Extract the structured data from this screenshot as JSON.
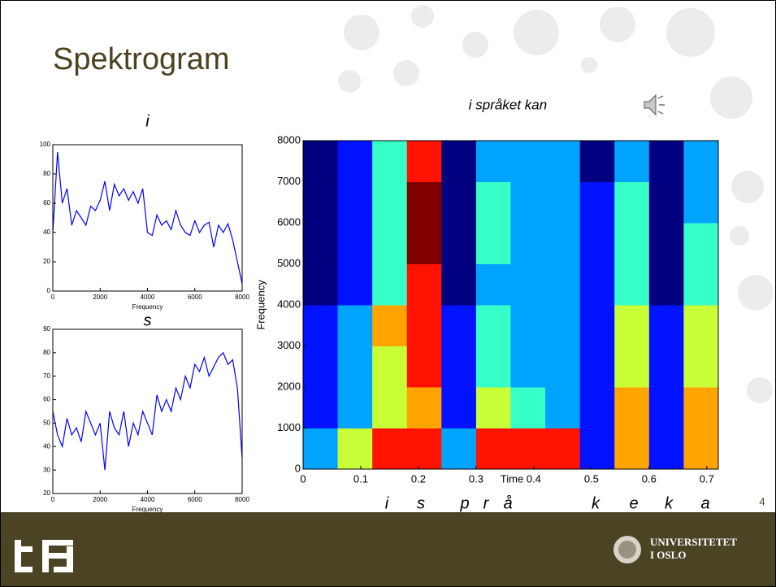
{
  "title": "Spektrogram",
  "page_number": "4",
  "phonemes": [
    "i",
    "s",
    "p",
    "r",
    "å",
    "k",
    "e",
    "k",
    "a"
  ],
  "footer": {
    "university": [
      "UNIVERSITETET",
      "I OSLO"
    ]
  },
  "chart_data": [
    {
      "type": "line",
      "title": "i",
      "xlabel": "Frequency",
      "color": "#0000ff",
      "x": [
        0,
        200,
        400,
        600,
        800,
        1000,
        1200,
        1400,
        1600,
        1800,
        2000,
        2200,
        2400,
        2600,
        2800,
        3000,
        3200,
        3400,
        3600,
        3800,
        4000,
        4200,
        4400,
        4600,
        4800,
        5000,
        5200,
        5400,
        5600,
        5800,
        6000,
        6200,
        6400,
        6600,
        6800,
        7000,
        7200,
        7400,
        7600,
        7800,
        8000
      ],
      "values": [
        40,
        95,
        60,
        70,
        45,
        55,
        50,
        45,
        58,
        55,
        62,
        75,
        55,
        73,
        65,
        70,
        62,
        68,
        60,
        70,
        40,
        38,
        52,
        45,
        48,
        42,
        55,
        45,
        40,
        38,
        48,
        40,
        45,
        47,
        30,
        45,
        40,
        46,
        35,
        20,
        5
      ],
      "xlim": [
        0,
        8000
      ],
      "xticks": [
        0,
        2000,
        4000,
        6000,
        8000
      ],
      "ylim": [
        0,
        100
      ],
      "yticks": [
        0,
        20,
        40,
        60,
        80,
        100
      ]
    },
    {
      "type": "line",
      "title": "s",
      "xlabel": "Frequency",
      "color": "#0000ff",
      "x": [
        0,
        200,
        400,
        600,
        800,
        1000,
        1200,
        1400,
        1600,
        1800,
        2000,
        2200,
        2400,
        2600,
        2800,
        3000,
        3200,
        3400,
        3600,
        3800,
        4000,
        4200,
        4400,
        4600,
        4800,
        5000,
        5200,
        5400,
        5600,
        5800,
        6000,
        6200,
        6400,
        6600,
        6800,
        7000,
        7200,
        7400,
        7600,
        7800,
        8000
      ],
      "values": [
        55,
        45,
        40,
        52,
        45,
        48,
        42,
        55,
        50,
        45,
        50,
        30,
        55,
        48,
        45,
        55,
        40,
        50,
        45,
        55,
        50,
        45,
        62,
        55,
        60,
        55,
        65,
        60,
        70,
        65,
        75,
        72,
        78,
        70,
        74,
        78,
        80,
        75,
        77,
        65,
        35
      ],
      "xlim": [
        0,
        8000
      ],
      "xticks": [
        0,
        2000,
        4000,
        6000,
        8000
      ],
      "ylim": [
        20,
        90
      ],
      "yticks": [
        20,
        30,
        40,
        50,
        60,
        70,
        80,
        90
      ]
    },
    {
      "type": "heatmap",
      "title": "i språket kan",
      "xlabel": "Time",
      "ylabel": "Frequency",
      "z": [
        [
          5,
          7,
          9,
          9,
          5,
          9,
          9,
          9,
          4,
          8,
          4,
          8
        ],
        [
          4,
          5,
          7,
          8,
          4,
          7,
          6,
          5,
          4,
          8,
          4,
          8
        ],
        [
          4,
          5,
          7,
          9,
          4,
          6,
          5,
          5,
          4,
          7,
          4,
          7
        ],
        [
          4,
          5,
          8,
          9,
          4,
          6,
          5,
          5,
          4,
          7,
          4,
          7
        ],
        [
          3,
          4,
          6,
          9,
          3,
          5,
          5,
          5,
          4,
          6,
          3,
          6
        ],
        [
          3,
          4,
          6,
          10,
          3,
          6,
          5,
          5,
          4,
          6,
          3,
          6
        ],
        [
          3,
          4,
          6,
          10,
          3,
          6,
          5,
          5,
          4,
          6,
          3,
          5
        ],
        [
          3,
          4,
          6,
          9,
          3,
          5,
          5,
          5,
          3,
          5,
          3,
          5
        ]
      ],
      "xlim": [
        0,
        0.72
      ],
      "xticks": [
        0,
        0.1,
        0.2,
        0.3,
        0.4,
        0.5,
        0.6,
        0.7
      ],
      "ylim": [
        0,
        8000
      ],
      "yticks": [
        0,
        1000,
        2000,
        3000,
        4000,
        5000,
        6000,
        7000,
        8000
      ]
    }
  ]
}
